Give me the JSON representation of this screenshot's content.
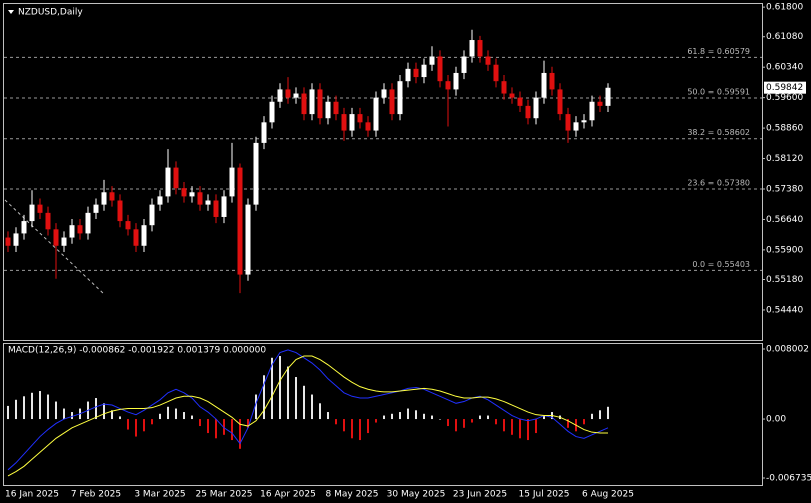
{
  "chart_data": [
    {
      "type": "candlestick",
      "title": "NZDUSD,Daily",
      "categories": [
        null,
        null,
        null,
        "16 Jan 2025",
        null,
        null,
        null,
        null,
        null,
        null,
        null,
        "7 Feb 2025",
        null,
        null,
        null,
        null,
        null,
        null,
        null,
        "3 Mar 2025",
        null,
        null,
        null,
        null,
        null,
        null,
        null,
        "25 Mar 2025",
        null,
        null,
        null,
        null,
        null,
        null,
        null,
        "16 Apr 2025",
        null,
        null,
        null,
        null,
        null,
        null,
        null,
        "8 May 2025",
        null,
        null,
        null,
        null,
        null,
        null,
        null,
        "30 May 2025",
        null,
        null,
        null,
        null,
        null,
        null,
        null,
        "23 Jun 2025",
        null,
        null,
        null,
        null,
        null,
        null,
        null,
        "15 Jul 2025",
        null,
        null,
        null,
        null,
        null,
        null,
        null,
        "6 Aug 2025"
      ],
      "open": [
        0.562,
        0.56,
        0.563,
        0.566,
        0.57,
        0.568,
        0.564,
        0.56,
        0.562,
        0.565,
        0.563,
        0.568,
        0.57,
        0.573,
        0.571,
        0.566,
        0.564,
        0.56,
        0.565,
        0.57,
        0.572,
        0.579,
        0.574,
        0.572,
        0.573,
        0.57,
        0.571,
        0.567,
        0.572,
        0.579,
        0.553,
        0.57,
        0.585,
        0.59,
        0.595,
        0.598,
        0.596,
        0.597,
        0.592,
        0.598,
        0.591,
        0.595,
        0.592,
        0.588,
        0.592,
        0.59,
        0.588,
        0.596,
        0.598,
        0.592,
        0.6,
        0.603,
        0.601,
        0.604,
        0.606,
        0.6,
        0.598,
        0.602,
        0.606,
        0.61,
        0.606,
        0.604,
        0.6,
        0.597,
        0.596,
        0.594,
        0.591,
        0.596,
        0.602,
        0.598,
        0.592,
        0.588,
        0.59,
        0.5905,
        0.595,
        0.594
      ],
      "high": [
        0.5635,
        0.5645,
        0.5675,
        0.5735,
        0.5715,
        0.5695,
        0.5655,
        0.5635,
        0.5665,
        0.5665,
        0.5695,
        0.5715,
        0.576,
        0.5745,
        0.5725,
        0.5675,
        0.5655,
        0.5665,
        0.5715,
        0.5735,
        0.5835,
        0.5805,
        0.5755,
        0.5745,
        0.5745,
        0.5725,
        0.5725,
        0.5735,
        0.585,
        0.58,
        0.5715,
        0.5865,
        0.5915,
        0.5965,
        0.5995,
        0.601,
        0.5985,
        0.5985,
        0.5995,
        0.5995,
        0.5965,
        0.5965,
        0.5935,
        0.5935,
        0.5935,
        0.5915,
        0.5975,
        0.5995,
        0.5995,
        0.6015,
        0.6045,
        0.6045,
        0.6055,
        0.6085,
        0.6075,
        0.6015,
        0.6035,
        0.6075,
        0.6125,
        0.611,
        0.6075,
        0.6055,
        0.6015,
        0.5985,
        0.5975,
        0.5955,
        0.5975,
        0.605,
        0.6035,
        0.5995,
        0.5935,
        0.5915,
        0.592,
        0.5965,
        0.5965,
        0.5995
      ],
      "low": [
        0.5585,
        0.5585,
        0.5615,
        0.5645,
        0.5665,
        0.5625,
        0.552,
        0.5585,
        0.5605,
        0.5615,
        0.5615,
        0.5665,
        0.5685,
        0.5695,
        0.5645,
        0.5625,
        0.5585,
        0.5585,
        0.5635,
        0.5685,
        0.5705,
        0.5725,
        0.5705,
        0.5705,
        0.5685,
        0.5685,
        0.5655,
        0.5655,
        0.5705,
        0.5485,
        0.5515,
        0.5685,
        0.5835,
        0.5885,
        0.5935,
        0.5945,
        0.5945,
        0.5905,
        0.5905,
        0.5895,
        0.5895,
        0.5905,
        0.5855,
        0.5865,
        0.5885,
        0.5865,
        0.5865,
        0.5945,
        0.5905,
        0.5905,
        0.5985,
        0.5995,
        0.5995,
        0.6025,
        0.5985,
        0.589,
        0.5965,
        0.6005,
        0.6045,
        0.6045,
        0.6025,
        0.5985,
        0.5955,
        0.5945,
        0.5925,
        0.5895,
        0.5895,
        0.5945,
        0.5965,
        0.5905,
        0.585,
        0.5865,
        0.5885,
        0.589,
        0.5925,
        0.5925
      ],
      "close": [
        0.56,
        0.563,
        0.566,
        0.57,
        0.568,
        0.564,
        0.56,
        0.562,
        0.565,
        0.563,
        0.568,
        0.57,
        0.573,
        0.571,
        0.566,
        0.564,
        0.56,
        0.565,
        0.57,
        0.572,
        0.579,
        0.574,
        0.572,
        0.573,
        0.57,
        0.571,
        0.567,
        0.572,
        0.579,
        0.553,
        0.57,
        0.585,
        0.59,
        0.595,
        0.598,
        0.596,
        0.597,
        0.592,
        0.598,
        0.591,
        0.595,
        0.592,
        0.588,
        0.592,
        0.59,
        0.588,
        0.596,
        0.598,
        0.592,
        0.6,
        0.603,
        0.601,
        0.604,
        0.606,
        0.6,
        0.598,
        0.602,
        0.606,
        0.61,
        0.606,
        0.604,
        0.6,
        0.597,
        0.596,
        0.594,
        0.591,
        0.596,
        0.602,
        0.598,
        0.592,
        0.588,
        0.59,
        0.5905,
        0.595,
        0.594,
        0.5984
      ],
      "up_color": "#ffffff",
      "down_color": "#e01010",
      "ylim": [
        0.5371,
        0.619
      ],
      "yticks": [
        {
          "value": 0.618,
          "label": "0.61800"
        },
        {
          "value": 0.6108,
          "label": "0.61080"
        },
        {
          "value": 0.6034,
          "label": "0.60340"
        },
        {
          "value": 0.596,
          "label": "0.59600"
        },
        {
          "value": 0.5886,
          "label": "0.58860"
        },
        {
          "value": 0.5812,
          "label": "0.58120"
        },
        {
          "value": 0.5738,
          "label": "0.57380"
        },
        {
          "value": 0.5664,
          "label": "0.56640"
        },
        {
          "value": 0.559,
          "label": "0.55900"
        },
        {
          "value": 0.5518,
          "label": "0.55180"
        },
        {
          "value": 0.5444,
          "label": "0.54440"
        }
      ],
      "fib_levels": [
        {
          "value": 0.60579,
          "label": "61.8 = 0.60579"
        },
        {
          "value": 0.59591,
          "label": "50.0 = 0.59591"
        },
        {
          "value": 0.58602,
          "label": "38.2 = 0.58602"
        },
        {
          "value": 0.5738,
          "label": "23.6 = 0.57380"
        },
        {
          "value": 0.55403,
          "label": "0.0 = 0.55403"
        }
      ],
      "last_price": {
        "value": 0.59842,
        "label": "0.59842"
      }
    },
    {
      "type": "macd",
      "title": "MACD(12,26,9) -0.000862 -0.001922 0.001379 0.000000",
      "histogram": {
        "pos_color": "#e8e8e8",
        "neg_color": "#e01010",
        "values": [
          0.0015,
          0.0022,
          0.0026,
          0.003,
          0.0032,
          0.0028,
          0.002,
          0.0012,
          0.0008,
          0.0012,
          0.002,
          0.0024,
          0.0018,
          0.001,
          0.0003,
          -0.0012,
          -0.002,
          -0.0014,
          -0.0006,
          0.0006,
          0.0014,
          0.0012,
          0.0008,
          0.0004,
          -0.0008,
          -0.0016,
          -0.0022,
          -0.0018,
          -0.0024,
          -0.0034,
          -0.001,
          0.0028,
          0.005,
          0.007,
          0.0072,
          0.006,
          0.0048,
          0.0038,
          0.0028,
          0.0018,
          0.0008,
          -0.0006,
          -0.0014,
          -0.0022,
          -0.0024,
          -0.0016,
          -0.0004,
          0.0004,
          0.0006,
          0.0008,
          0.0012,
          0.001,
          0.0006,
          0.0004,
          0.0,
          -0.0008,
          -0.0014,
          -0.001,
          -0.0004,
          0.0004,
          0.0004,
          -0.0006,
          -0.0014,
          -0.0018,
          -0.0022,
          -0.0024,
          -0.0016,
          0.0004,
          0.0008,
          0.0004,
          -0.001,
          -0.0014,
          -0.0006,
          0.0006,
          0.001,
          0.0014
        ]
      },
      "macd_line": {
        "color": "#2030ff",
        "values": [
          -0.0058,
          -0.005,
          -0.004,
          -0.003,
          -0.002,
          -0.0012,
          -0.0005,
          0.0,
          0.0003,
          0.0006,
          0.001,
          0.0014,
          0.0017,
          0.0016,
          0.0012,
          0.0008,
          0.0005,
          0.001,
          0.0016,
          0.0022,
          0.003,
          0.0034,
          0.003,
          0.0024,
          0.0014,
          0.0008,
          0.0,
          -0.001,
          -0.0016,
          -0.0028,
          -0.001,
          0.0018,
          0.004,
          0.0062,
          0.0076,
          0.0079,
          0.0076,
          0.007,
          0.0064,
          0.0056,
          0.0046,
          0.0038,
          0.003,
          0.0026,
          0.0024,
          0.0024,
          0.0026,
          0.0028,
          0.003,
          0.0032,
          0.0035,
          0.0036,
          0.0034,
          0.003,
          0.0026,
          0.0022,
          0.0018,
          0.002,
          0.0024,
          0.0026,
          0.0022,
          0.0016,
          0.001,
          0.0004,
          0.0,
          -0.0002,
          0.0,
          0.0004,
          0.0002,
          -0.0006,
          -0.0014,
          -0.002,
          -0.0022,
          -0.0018,
          -0.0014,
          -0.001
        ]
      },
      "signal_line": {
        "color": "#ffff40",
        "values": [
          -0.0065,
          -0.006,
          -0.0054,
          -0.0046,
          -0.0038,
          -0.003,
          -0.0022,
          -0.0016,
          -0.001,
          -0.0006,
          -0.0002,
          0.0002,
          0.0006,
          0.0009,
          0.0011,
          0.0012,
          0.0012,
          0.0012,
          0.0013,
          0.0016,
          0.002,
          0.0024,
          0.0026,
          0.0026,
          0.0024,
          0.002,
          0.0014,
          0.0008,
          0.0002,
          -0.0006,
          -0.0008,
          -0.0002,
          0.001,
          0.0026,
          0.0044,
          0.0058,
          0.0068,
          0.0072,
          0.0072,
          0.0068,
          0.0062,
          0.0055,
          0.0048,
          0.0042,
          0.0037,
          0.0034,
          0.0032,
          0.0031,
          0.0031,
          0.0032,
          0.0033,
          0.0034,
          0.0035,
          0.0034,
          0.0032,
          0.0029,
          0.0026,
          0.0024,
          0.0024,
          0.0025,
          0.0025,
          0.0023,
          0.002,
          0.0016,
          0.0012,
          0.0008,
          0.0005,
          0.0004,
          0.0004,
          0.0002,
          -0.0002,
          -0.0007,
          -0.0012,
          -0.0015,
          -0.0016,
          -0.0016
        ]
      },
      "ylim": [
        -0.007535,
        0.008688
      ],
      "yticks": [
        0.008002,
        {
          "value": 0,
          "label": "0.00"
        },
        -0.006735
      ]
    }
  ]
}
